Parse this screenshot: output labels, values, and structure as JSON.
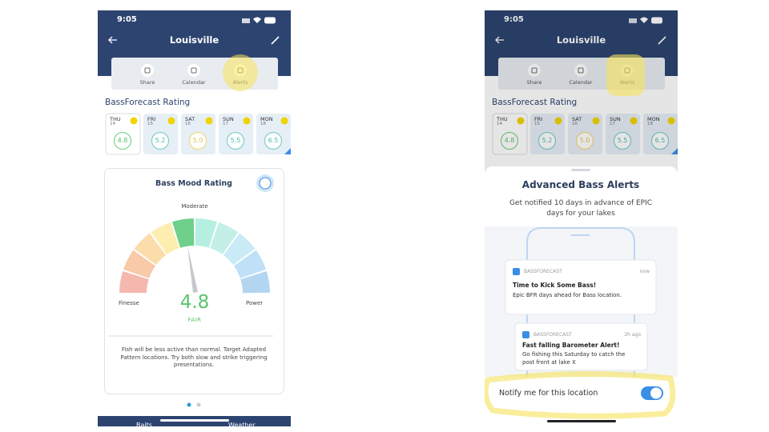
{
  "screens": [
    {
      "status_time": "9:05",
      "header_title": "Louisville",
      "toolbar": [
        "Share",
        "Calendar",
        "Alerts"
      ],
      "section_title": "BassForecast Rating",
      "days": [
        {
          "day": "THU",
          "date": 14,
          "rating": "4.8"
        },
        {
          "day": "FRI",
          "date": 15,
          "rating": "5.2"
        },
        {
          "day": "SAT",
          "date": 16,
          "rating": "5.0"
        },
        {
          "day": "SUN",
          "date": 17,
          "rating": "5.5"
        },
        {
          "day": "MON",
          "date": 18,
          "rating": "6.5"
        }
      ]
    },
    {
      "status_time": "9:05",
      "header_title": "Louisville",
      "toolbar": [
        "Share",
        "Calendar",
        "Alerts"
      ],
      "section_title": "BassForecast Rating",
      "days": [
        {
          "day": "THU",
          "date": 14,
          "rating": "4.8"
        },
        {
          "day": "FRI",
          "date": 15,
          "rating": "5.2"
        },
        {
          "day": "SAT",
          "date": 16,
          "rating": "5.0"
        },
        {
          "day": "SUN",
          "date": 17,
          "rating": "5.5"
        },
        {
          "day": "MON",
          "date": 18,
          "rating": "6.5"
        }
      ]
    }
  ],
  "mood_card": {
    "title": "Bass Mood Rating",
    "top_label": "Moderate",
    "left_label": "Finesse",
    "right_label": "Power",
    "score": "4.8",
    "verdict": "FAIR",
    "description": "Fish will be less active than normal. Target Adapted Pattern locations. Try both slow and strike triggering presentations."
  },
  "tabs": [
    "Baits",
    "Weather"
  ],
  "alerts_sheet": {
    "title": "Advanced Bass Alerts",
    "subtitle": "Get notified 10 days in advance of EPIC days for your lakes",
    "notifications": [
      {
        "app": "BASSFORECAST",
        "time": "now",
        "title": "Time to Kick Some Bass!",
        "body": "Epic BFR days ahead for Bass location."
      },
      {
        "app": "BASSFORECAST",
        "time": "2h ago",
        "title": "Fast falling Barometer Alert!",
        "body": "Go fishing this Saturday to catch the post front at lake X"
      }
    ],
    "toggle_label": "Notify me for this location"
  }
}
